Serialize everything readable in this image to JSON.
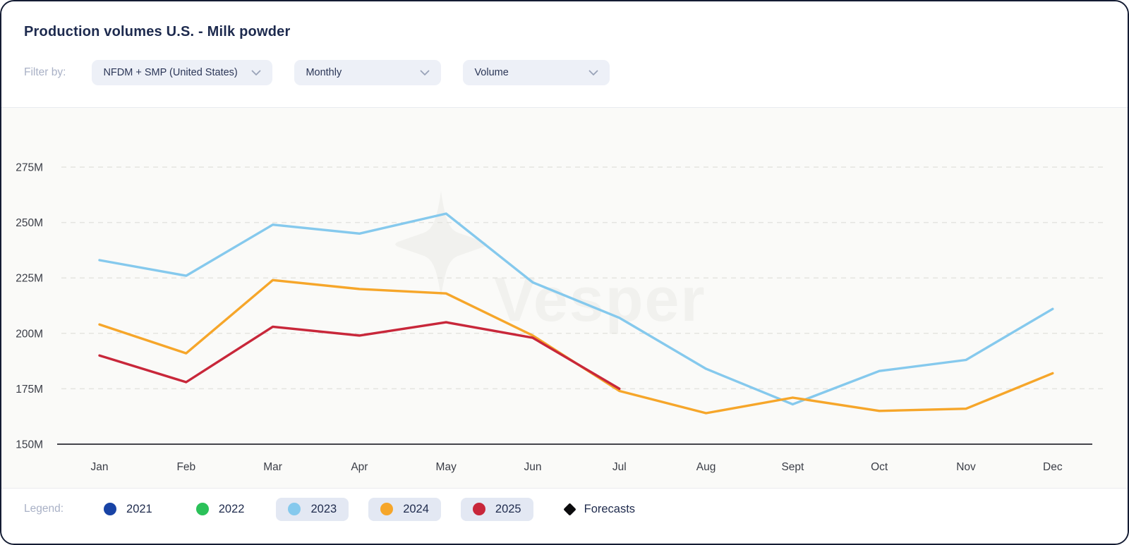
{
  "header": {
    "title": "Production volumes U.S. - Milk powder",
    "filter_label": "Filter by:",
    "filters": [
      {
        "name": "product",
        "value": "NFDM + SMP (United States)"
      },
      {
        "name": "frequency",
        "value": "Monthly"
      },
      {
        "name": "metric",
        "value": "Volume"
      }
    ]
  },
  "chart_data": {
    "type": "line",
    "title": "Production volumes U.S. - Milk powder",
    "x": [
      "Jan",
      "Feb",
      "Mar",
      "Apr",
      "May",
      "Jun",
      "Jul",
      "Aug",
      "Sept",
      "Oct",
      "Nov",
      "Dec"
    ],
    "ylabel": "Volume",
    "y_unit": "M",
    "ylim": [
      150,
      287
    ],
    "yticks": [
      150,
      175,
      200,
      225,
      250,
      275
    ],
    "ytick_labels": [
      "150M",
      "175M",
      "200M",
      "225M",
      "250M",
      "275M"
    ],
    "grid": "horizontal-dashed",
    "legend_position": "bottom",
    "watermark": "Vesper",
    "series": [
      {
        "name": "2021",
        "color": "#1843A5",
        "visible": false,
        "values": []
      },
      {
        "name": "2022",
        "color": "#2BC159",
        "visible": false,
        "values": []
      },
      {
        "name": "2023",
        "color": "#85C9ED",
        "visible": true,
        "values": [
          233,
          226,
          249,
          245,
          254,
          223,
          207,
          184,
          168,
          183,
          188,
          211
        ]
      },
      {
        "name": "2024",
        "color": "#F6A62A",
        "visible": true,
        "values": [
          204,
          191,
          224,
          220,
          218,
          199,
          174,
          164,
          171,
          165,
          166,
          182
        ]
      },
      {
        "name": "2025",
        "color": "#C8273A",
        "visible": true,
        "values": [
          190,
          178,
          203,
          199,
          205,
          198,
          175
        ]
      }
    ]
  },
  "legend": {
    "label": "Legend:",
    "items": [
      {
        "label": "2021",
        "marker": "dot",
        "color": "#1843A5",
        "active": false
      },
      {
        "label": "2022",
        "marker": "dot",
        "color": "#2BC159",
        "active": false
      },
      {
        "label": "2023",
        "marker": "dot",
        "color": "#85C9ED",
        "active": true
      },
      {
        "label": "2024",
        "marker": "dot",
        "color": "#F6A62A",
        "active": true
      },
      {
        "label": "2025",
        "marker": "dot",
        "color": "#C8273A",
        "active": true
      },
      {
        "label": "Forecasts",
        "marker": "diamond",
        "color": "#0B0B0D",
        "active": false
      }
    ]
  },
  "colors": {
    "title_text": "#1D2A4E",
    "muted_label": "#A9B1C6",
    "dropdown_bg": "#EDF0F7",
    "chart_bg": "#FAFAF8",
    "grid_line": "#E4E4E0",
    "axis_line": "#45454C",
    "tick_text": "#3A3D46",
    "legend_pill_bg": "#E3E8F3",
    "watermark": "#F1F1EE"
  }
}
